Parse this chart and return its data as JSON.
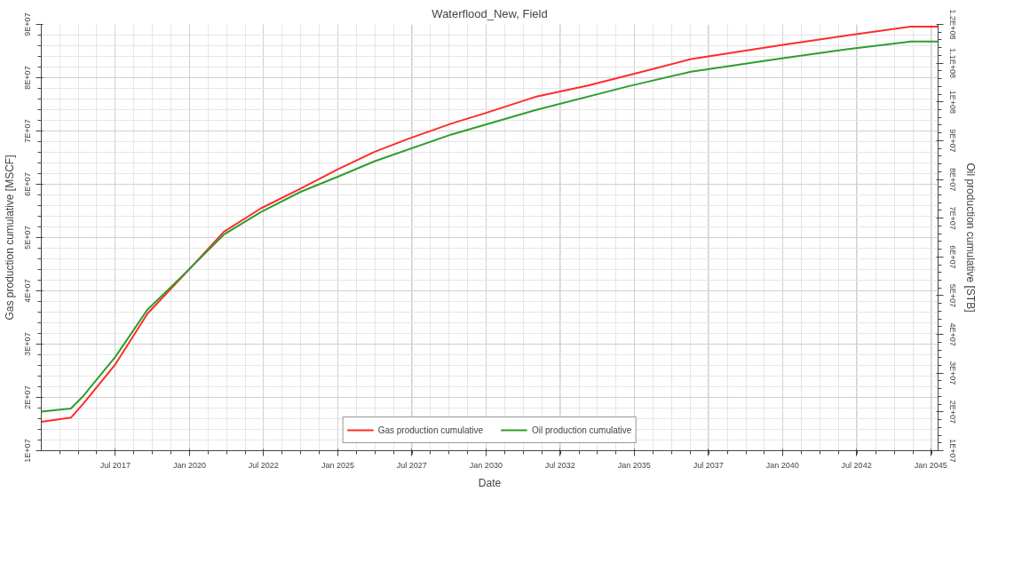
{
  "chart_data": {
    "type": "line",
    "title": "Waterflood_New, Field",
    "xlabel": "Date",
    "ylabel": "Gas production cumulative [MSCF]",
    "y2label": "Oil production cumulative [STB]",
    "xlim": [
      "2015-01-01",
      "2045-04-01"
    ],
    "xticks": [
      {
        "value": "2017-07-01",
        "label": "Jul 2017"
      },
      {
        "value": "2020-01-01",
        "label": "Jan 2020"
      },
      {
        "value": "2022-07-01",
        "label": "Jul 2022"
      },
      {
        "value": "2025-01-01",
        "label": "Jan 2025"
      },
      {
        "value": "2027-07-01",
        "label": "Jul 2027"
      },
      {
        "value": "2030-01-01",
        "label": "Jan 2030"
      },
      {
        "value": "2032-07-01",
        "label": "Jul 2032"
      },
      {
        "value": "2035-01-01",
        "label": "Jan 2035"
      },
      {
        "value": "2037-07-01",
        "label": "Jul 2037"
      },
      {
        "value": "2040-01-01",
        "label": "Jan 2040"
      },
      {
        "value": "2042-07-01",
        "label": "Jul 2042"
      },
      {
        "value": "2045-01-01",
        "label": "Jan 2045"
      }
    ],
    "ylim": [
      10000000,
      90000000
    ],
    "yticks": [
      {
        "value": 10000000,
        "label": "1E+07"
      },
      {
        "value": 20000000,
        "label": "2E+07"
      },
      {
        "value": 30000000,
        "label": "3E+07"
      },
      {
        "value": 40000000,
        "label": "4E+07"
      },
      {
        "value": 50000000,
        "label": "5E+07"
      },
      {
        "value": 60000000,
        "label": "6E+07"
      },
      {
        "value": 70000000,
        "label": "7E+07"
      },
      {
        "value": 80000000,
        "label": "8E+07"
      },
      {
        "value": 90000000,
        "label": "9E+07"
      }
    ],
    "y2lim": [
      10000000,
      120000000
    ],
    "y2ticks": [
      {
        "value": 10000000,
        "label": "1E+07"
      },
      {
        "value": 20000000,
        "label": "2E+07"
      },
      {
        "value": 30000000,
        "label": "3E+07"
      },
      {
        "value": 40000000,
        "label": "4E+07"
      },
      {
        "value": 50000000,
        "label": "5E+07"
      },
      {
        "value": 60000000,
        "label": "6E+07"
      },
      {
        "value": 70000000,
        "label": "7E+07"
      },
      {
        "value": 80000000,
        "label": "8E+07"
      },
      {
        "value": 90000000,
        "label": "9E+07"
      },
      {
        "value": 100000000,
        "label": "1E+08"
      },
      {
        "value": 110000000,
        "label": "1.1E+08"
      },
      {
        "value": 120000000,
        "label": "1.2E+08"
      }
    ],
    "grid": true,
    "legend": "bottom",
    "marker": "none",
    "line_style": "solid",
    "series": [
      {
        "name": "Gas production cumulative",
        "color": "#ff2b2b",
        "x": [
          "2015-01",
          "2016-01",
          "2016-06",
          "2017-07",
          "2018-08",
          "2020-01",
          "2021-03",
          "2022-06",
          "2023-10",
          "2025-01",
          "2026-04",
          "2027-06",
          "2028-11",
          "2030-01",
          "2031-09",
          "2033-06",
          "2034-11",
          "2036-12",
          "2039-12",
          "2042-03",
          "2044-05",
          "2045-04"
        ],
        "values": [
          15400000,
          16200000,
          18800000,
          26200000,
          35700000,
          44100000,
          51100000,
          55500000,
          59200000,
          62800000,
          66100000,
          68600000,
          71400000,
          73400000,
          76400000,
          78500000,
          80500000,
          83500000,
          86100000,
          87900000,
          89600000,
          89600000
        ]
      },
      {
        "name": "Oil production cumulative",
        "color": "#2e9e2e",
        "axis": "y2",
        "x": [
          "2015-01",
          "2016-01",
          "2016-06",
          "2017-07",
          "2018-08",
          "2020-01",
          "2021-03",
          "2022-06",
          "2023-10",
          "2025-01",
          "2026-04",
          "2028-11",
          "2031-09",
          "2034-11",
          "2036-12",
          "2039-12",
          "2042-03",
          "2044-05",
          "2045-04"
        ],
        "values": [
          20100000,
          20900000,
          24100000,
          34200000,
          46400000,
          56900000,
          65800000,
          71600000,
          76800000,
          80700000,
          84700000,
          91600000,
          97900000,
          104100000,
          107800000,
          111200000,
          113600000,
          115600000,
          115600000
        ]
      }
    ]
  }
}
